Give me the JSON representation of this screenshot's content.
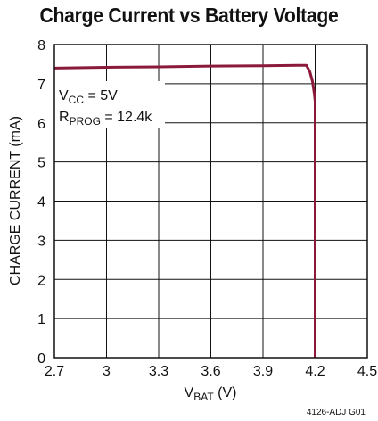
{
  "chart_data": {
    "type": "line",
    "title": "Charge Current vs Battery Voltage",
    "xlabel": {
      "main": "V",
      "sub": "BAT",
      "unit": " (V)"
    },
    "ylabel": "CHARGE CURRENT (mA)",
    "xlim": [
      2.7,
      4.5
    ],
    "ylim": [
      0,
      8
    ],
    "xticks": [
      "2.7",
      "3",
      "3.3",
      "3.6",
      "3.9",
      "4.2",
      "4.5"
    ],
    "yticks": [
      "0",
      "1",
      "2",
      "3",
      "4",
      "5",
      "6",
      "7",
      "8"
    ],
    "grid": true,
    "line_color": "#8b1a3a",
    "series": [
      {
        "x": [
          2.7,
          3.0,
          3.3,
          3.6,
          3.9,
          4.1,
          4.15,
          4.17,
          4.185,
          4.195,
          4.2,
          4.2
        ],
        "y": [
          7.4,
          7.42,
          7.43,
          7.45,
          7.46,
          7.47,
          7.47,
          7.3,
          7.05,
          6.75,
          6.55,
          0
        ]
      }
    ],
    "annotations": {
      "vcc": {
        "main": "V",
        "sub": "CC",
        "rest": " = 5V"
      },
      "rprog": {
        "main": "R",
        "sub": "PROG",
        "rest": " = 12.4k"
      }
    },
    "figure_code": "4126-ADJ G01"
  }
}
